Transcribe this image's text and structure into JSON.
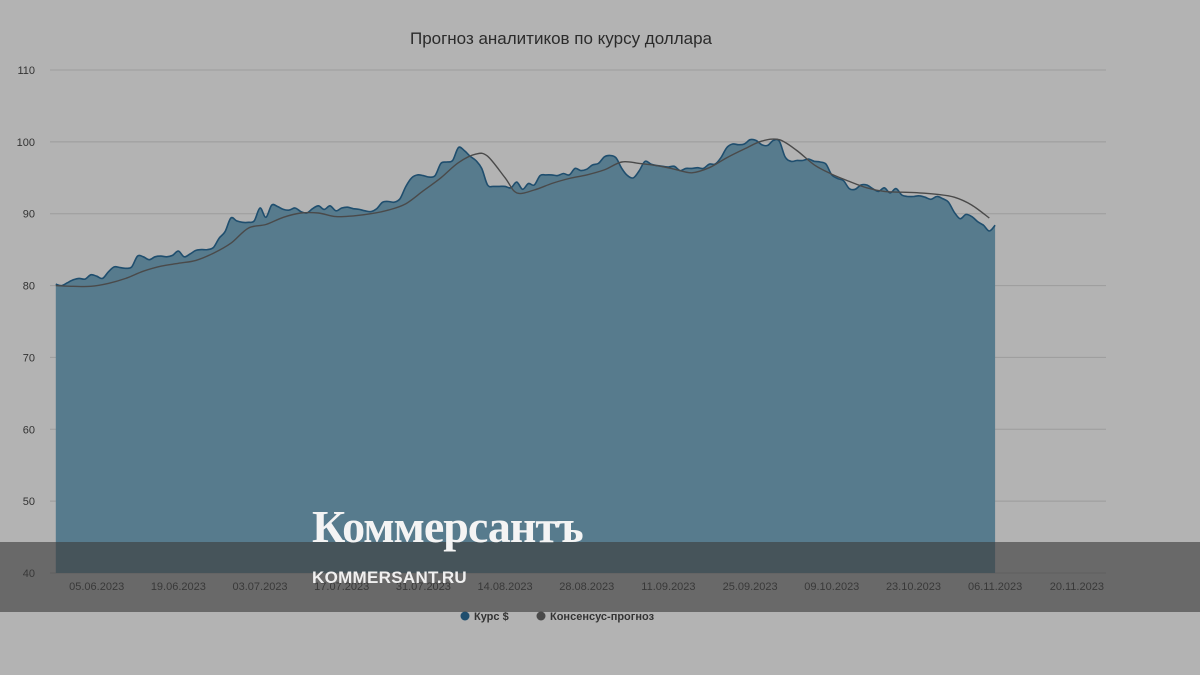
{
  "chart_data": {
    "type": "area",
    "title": "Прогноз аналитиков по курсу доллара",
    "xlabel": "",
    "ylabel": "",
    "ylim": [
      40,
      110
    ],
    "yticks": [
      40,
      50,
      60,
      70,
      80,
      90,
      100,
      110
    ],
    "x_range": [
      "2023-05-28",
      "2023-11-25"
    ],
    "xtick_labels": [
      {
        "date": "2023-06-05",
        "label": "05.06.2023"
      },
      {
        "date": "2023-06-19",
        "label": "19.06.2023"
      },
      {
        "date": "2023-07-03",
        "label": "03.07.2023"
      },
      {
        "date": "2023-07-17",
        "label": "17.07.2023"
      },
      {
        "date": "2023-07-31",
        "label": "31.07.2023"
      },
      {
        "date": "2023-08-14",
        "label": "14.08.2023"
      },
      {
        "date": "2023-08-28",
        "label": "28.08.2023"
      },
      {
        "date": "2023-09-11",
        "label": "11.09.2023"
      },
      {
        "date": "2023-09-25",
        "label": "25.09.2023"
      },
      {
        "date": "2023-10-09",
        "label": "09.10.2023"
      },
      {
        "date": "2023-10-23",
        "label": "23.10.2023"
      },
      {
        "date": "2023-11-06",
        "label": "06.11.2023"
      },
      {
        "date": "2023-11-20",
        "label": "20.11.2023"
      }
    ],
    "grid": "horizontal",
    "legend_position": "bottom-center",
    "series": [
      {
        "name": "Курс $",
        "type": "area",
        "color": "#1f4e6e",
        "fill": "#577b8d",
        "points": [
          [
            "2023-05-29",
            80.2
          ],
          [
            "2023-05-30",
            80.0
          ],
          [
            "2023-05-31",
            80.4
          ],
          [
            "2023-06-01",
            80.8
          ],
          [
            "2023-06-02",
            81.0
          ],
          [
            "2023-06-03",
            80.9
          ],
          [
            "2023-06-04",
            81.5
          ],
          [
            "2023-06-05",
            81.3
          ],
          [
            "2023-06-06",
            81.0
          ],
          [
            "2023-06-07",
            81.9
          ],
          [
            "2023-06-08",
            82.6
          ],
          [
            "2023-06-09",
            82.5
          ],
          [
            "2023-06-10",
            82.4
          ],
          [
            "2023-06-11",
            82.6
          ],
          [
            "2023-06-12",
            84.1
          ],
          [
            "2023-06-13",
            84.0
          ],
          [
            "2023-06-14",
            83.6
          ],
          [
            "2023-06-15",
            84.0
          ],
          [
            "2023-06-16",
            84.1
          ],
          [
            "2023-06-17",
            84.0
          ],
          [
            "2023-06-18",
            84.2
          ],
          [
            "2023-06-19",
            84.8
          ],
          [
            "2023-06-20",
            84.0
          ],
          [
            "2023-06-21",
            84.4
          ],
          [
            "2023-06-22",
            84.9
          ],
          [
            "2023-06-23",
            85.0
          ],
          [
            "2023-06-24",
            85.0
          ],
          [
            "2023-06-25",
            85.3
          ],
          [
            "2023-06-26",
            86.6
          ],
          [
            "2023-06-27",
            87.5
          ],
          [
            "2023-06-28",
            89.4
          ],
          [
            "2023-06-29",
            89.0
          ],
          [
            "2023-06-30",
            88.8
          ],
          [
            "2023-07-01",
            88.8
          ],
          [
            "2023-07-02",
            89.0
          ],
          [
            "2023-07-03",
            90.8
          ],
          [
            "2023-07-04",
            89.5
          ],
          [
            "2023-07-05",
            91.2
          ],
          [
            "2023-07-06",
            91.0
          ],
          [
            "2023-07-07",
            90.6
          ],
          [
            "2023-07-08",
            90.5
          ],
          [
            "2023-07-09",
            90.8
          ],
          [
            "2023-07-10",
            90.3
          ],
          [
            "2023-07-11",
            90.1
          ],
          [
            "2023-07-12",
            90.7
          ],
          [
            "2023-07-13",
            91.1
          ],
          [
            "2023-07-14",
            90.6
          ],
          [
            "2023-07-15",
            91.1
          ],
          [
            "2023-07-16",
            90.4
          ],
          [
            "2023-07-17",
            90.8
          ],
          [
            "2023-07-18",
            90.9
          ],
          [
            "2023-07-19",
            90.7
          ],
          [
            "2023-07-20",
            90.6
          ],
          [
            "2023-07-21",
            90.4
          ],
          [
            "2023-07-22",
            90.3
          ],
          [
            "2023-07-23",
            90.7
          ],
          [
            "2023-07-24",
            91.6
          ],
          [
            "2023-07-25",
            91.7
          ],
          [
            "2023-07-26",
            91.6
          ],
          [
            "2023-07-27",
            92.1
          ],
          [
            "2023-07-28",
            93.8
          ],
          [
            "2023-07-29",
            95.0
          ],
          [
            "2023-07-30",
            95.4
          ],
          [
            "2023-07-31",
            95.3
          ],
          [
            "2023-08-01",
            95.1
          ],
          [
            "2023-08-02",
            95.3
          ],
          [
            "2023-08-03",
            97.0
          ],
          [
            "2023-08-04",
            97.2
          ],
          [
            "2023-08-05",
            97.4
          ],
          [
            "2023-08-06",
            99.2
          ],
          [
            "2023-08-07",
            98.8
          ],
          [
            "2023-08-08",
            98.0
          ],
          [
            "2023-08-09",
            97.4
          ],
          [
            "2023-08-10",
            96.3
          ],
          [
            "2023-08-11",
            94.0
          ],
          [
            "2023-08-12",
            93.8
          ],
          [
            "2023-08-13",
            93.8
          ],
          [
            "2023-08-14",
            93.8
          ],
          [
            "2023-08-15",
            93.6
          ],
          [
            "2023-08-16",
            94.4
          ],
          [
            "2023-08-17",
            93.4
          ],
          [
            "2023-08-18",
            94.2
          ],
          [
            "2023-08-19",
            94.0
          ],
          [
            "2023-08-20",
            95.3
          ],
          [
            "2023-08-21",
            95.4
          ],
          [
            "2023-08-22",
            95.4
          ],
          [
            "2023-08-23",
            95.3
          ],
          [
            "2023-08-24",
            95.6
          ],
          [
            "2023-08-25",
            95.4
          ],
          [
            "2023-08-26",
            96.3
          ],
          [
            "2023-08-27",
            96.0
          ],
          [
            "2023-08-28",
            96.2
          ],
          [
            "2023-08-29",
            96.8
          ],
          [
            "2023-08-30",
            97.0
          ],
          [
            "2023-08-31",
            97.9
          ],
          [
            "2023-09-01",
            98.1
          ],
          [
            "2023-09-02",
            97.8
          ],
          [
            "2023-09-03",
            96.3
          ],
          [
            "2023-09-04",
            95.3
          ],
          [
            "2023-09-05",
            95.0
          ],
          [
            "2023-09-06",
            96.0
          ],
          [
            "2023-09-07",
            97.3
          ],
          [
            "2023-09-08",
            96.9
          ],
          [
            "2023-09-09",
            96.7
          ],
          [
            "2023-09-10",
            96.6
          ],
          [
            "2023-09-11",
            96.5
          ],
          [
            "2023-09-12",
            96.6
          ],
          [
            "2023-09-13",
            96.0
          ],
          [
            "2023-09-14",
            96.3
          ],
          [
            "2023-09-15",
            96.3
          ],
          [
            "2023-09-16",
            96.4
          ],
          [
            "2023-09-17",
            96.3
          ],
          [
            "2023-09-18",
            96.9
          ],
          [
            "2023-09-19",
            96.9
          ],
          [
            "2023-09-20",
            97.8
          ],
          [
            "2023-09-21",
            99.2
          ],
          [
            "2023-09-22",
            99.7
          ],
          [
            "2023-09-23",
            99.6
          ],
          [
            "2023-09-24",
            99.7
          ],
          [
            "2023-09-25",
            100.3
          ],
          [
            "2023-09-26",
            100.2
          ],
          [
            "2023-09-27",
            99.6
          ],
          [
            "2023-09-28",
            99.5
          ],
          [
            "2023-09-29",
            100.2
          ],
          [
            "2023-09-30",
            100.1
          ],
          [
            "2023-10-01",
            97.9
          ],
          [
            "2023-10-02",
            97.3
          ],
          [
            "2023-10-03",
            97.4
          ],
          [
            "2023-10-04",
            97.4
          ],
          [
            "2023-10-05",
            97.6
          ],
          [
            "2023-10-06",
            97.3
          ],
          [
            "2023-10-07",
            97.2
          ],
          [
            "2023-10-08",
            96.9
          ],
          [
            "2023-10-09",
            95.4
          ],
          [
            "2023-10-10",
            94.9
          ],
          [
            "2023-10-11",
            94.6
          ],
          [
            "2023-10-12",
            93.5
          ],
          [
            "2023-10-13",
            93.4
          ],
          [
            "2023-10-14",
            94.0
          ],
          [
            "2023-10-15",
            94.0
          ],
          [
            "2023-10-16",
            93.5
          ],
          [
            "2023-10-17",
            93.1
          ],
          [
            "2023-10-18",
            93.6
          ],
          [
            "2023-10-19",
            92.9
          ],
          [
            "2023-10-20",
            93.5
          ],
          [
            "2023-10-21",
            92.6
          ],
          [
            "2023-10-22",
            92.4
          ],
          [
            "2023-10-23",
            92.4
          ],
          [
            "2023-10-24",
            92.5
          ],
          [
            "2023-10-25",
            92.3
          ],
          [
            "2023-10-26",
            92.0
          ],
          [
            "2023-10-27",
            92.4
          ],
          [
            "2023-10-28",
            92.1
          ],
          [
            "2023-10-29",
            91.6
          ],
          [
            "2023-10-30",
            90.2
          ],
          [
            "2023-10-31",
            89.3
          ],
          [
            "2023-11-01",
            89.9
          ],
          [
            "2023-11-02",
            89.6
          ],
          [
            "2023-11-03",
            88.9
          ],
          [
            "2023-11-04",
            88.4
          ],
          [
            "2023-11-05",
            87.6
          ],
          [
            "2023-11-06",
            88.4
          ]
        ]
      },
      {
        "name": "Консенсус-прогноз",
        "type": "line",
        "color": "#4a4a4a",
        "points": [
          [
            "2023-05-29",
            80.0
          ],
          [
            "2023-06-01",
            79.9
          ],
          [
            "2023-06-04",
            79.9
          ],
          [
            "2023-06-07",
            80.3
          ],
          [
            "2023-06-10",
            81.0
          ],
          [
            "2023-06-13",
            82.0
          ],
          [
            "2023-06-16",
            82.7
          ],
          [
            "2023-06-19",
            83.1
          ],
          [
            "2023-06-22",
            83.5
          ],
          [
            "2023-06-25",
            84.5
          ],
          [
            "2023-06-28",
            85.9
          ],
          [
            "2023-07-01",
            88.0
          ],
          [
            "2023-07-04",
            88.5
          ],
          [
            "2023-07-07",
            89.5
          ],
          [
            "2023-07-10",
            90.1
          ],
          [
            "2023-07-13",
            90.1
          ],
          [
            "2023-07-16",
            89.6
          ],
          [
            "2023-07-19",
            89.7
          ],
          [
            "2023-07-22",
            90.0
          ],
          [
            "2023-07-25",
            90.5
          ],
          [
            "2023-07-28",
            91.4
          ],
          [
            "2023-07-31",
            93.2
          ],
          [
            "2023-08-03",
            95.0
          ],
          [
            "2023-08-06",
            97.1
          ],
          [
            "2023-08-09",
            98.3
          ],
          [
            "2023-08-11",
            98.0
          ],
          [
            "2023-08-14",
            95.0
          ],
          [
            "2023-08-16",
            92.9
          ],
          [
            "2023-08-19",
            93.3
          ],
          [
            "2023-08-22",
            94.2
          ],
          [
            "2023-08-25",
            94.9
          ],
          [
            "2023-08-28",
            95.4
          ],
          [
            "2023-08-31",
            96.1
          ],
          [
            "2023-09-03",
            97.2
          ],
          [
            "2023-09-06",
            97.0
          ],
          [
            "2023-09-09",
            96.7
          ],
          [
            "2023-09-12",
            96.2
          ],
          [
            "2023-09-15",
            95.7
          ],
          [
            "2023-09-18",
            96.4
          ],
          [
            "2023-09-21",
            97.8
          ],
          [
            "2023-09-24",
            99.0
          ],
          [
            "2023-09-27",
            100.1
          ],
          [
            "2023-09-30",
            100.3
          ],
          [
            "2023-10-03",
            98.8
          ],
          [
            "2023-10-06",
            96.8
          ],
          [
            "2023-10-09",
            95.5
          ],
          [
            "2023-10-12",
            94.5
          ],
          [
            "2023-10-15",
            93.6
          ],
          [
            "2023-10-18",
            93.1
          ],
          [
            "2023-10-21",
            93.0
          ],
          [
            "2023-10-24",
            92.9
          ],
          [
            "2023-10-27",
            92.7
          ],
          [
            "2023-10-30",
            92.3
          ],
          [
            "2023-11-02",
            91.2
          ],
          [
            "2023-11-05",
            89.4
          ]
        ]
      }
    ]
  },
  "watermark": {
    "brand": "Коммерсантъ",
    "url": "KOMMERSANT.RU"
  }
}
